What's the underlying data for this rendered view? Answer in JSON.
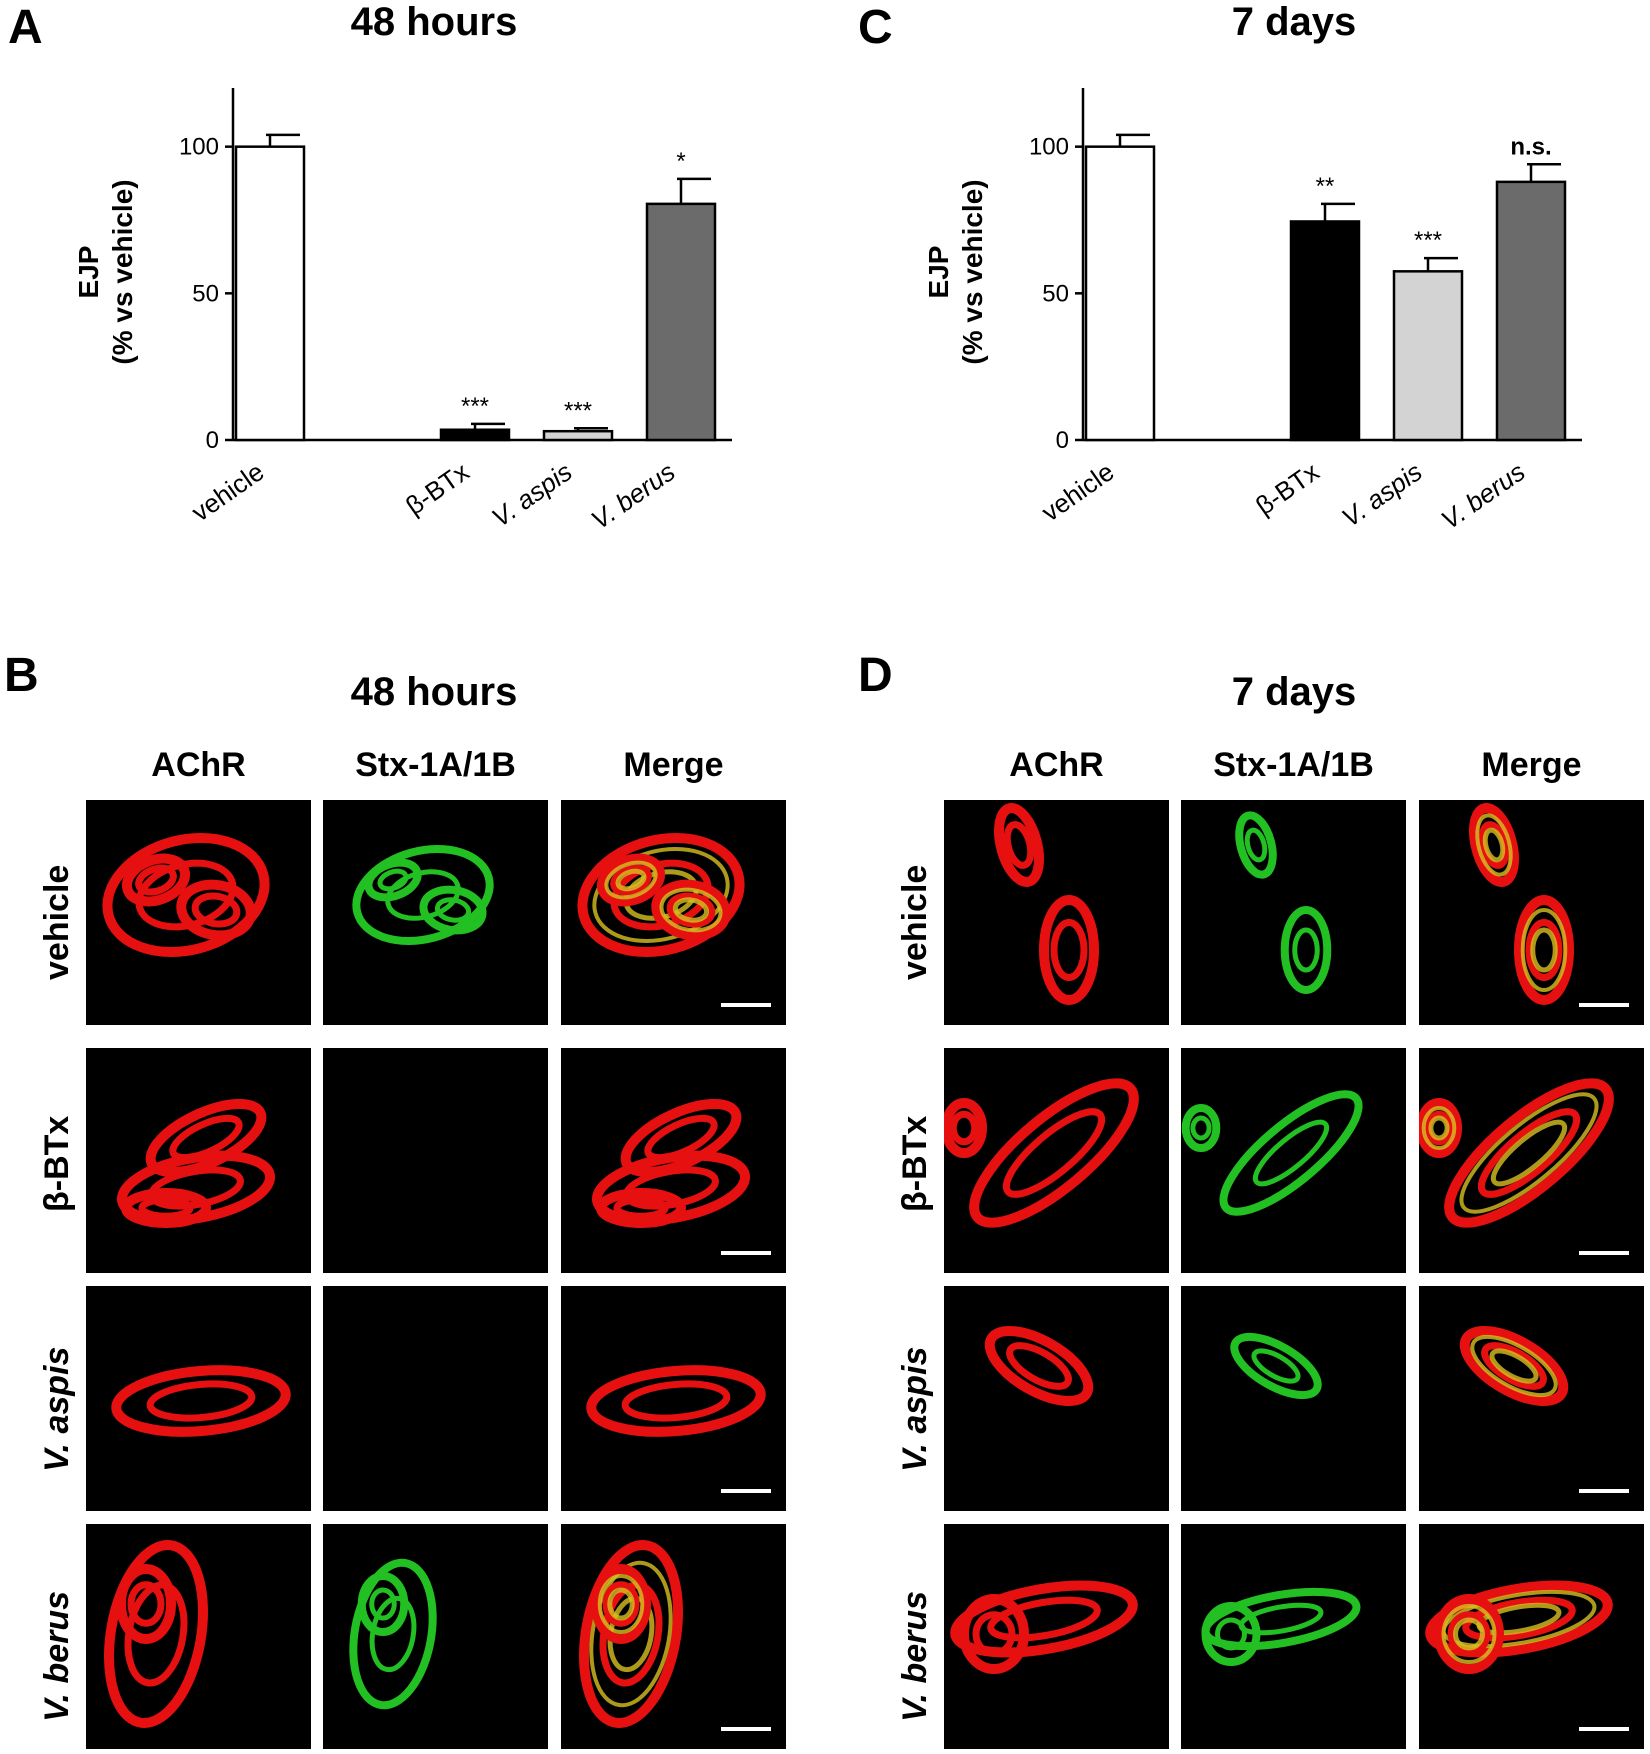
{
  "panels": {
    "A": {
      "letter": "A",
      "title": "48 hours"
    },
    "B": {
      "letter": "B",
      "title": "48 hours"
    },
    "C": {
      "letter": "C",
      "title": "7 days"
    },
    "D": {
      "letter": "D",
      "title": "7 days"
    }
  },
  "image_grid": {
    "columns": [
      "AChR",
      "Stx-1A/1B",
      "Merge"
    ],
    "rows": [
      "vehicle",
      "β-BTx",
      "V. aspis",
      "V. berus"
    ]
  },
  "colors": {
    "vehicle": "#ffffff",
    "b_btx": "#000000",
    "v_aspis": "#d3d3d3",
    "v_berus": "#6b6b6b",
    "achr": "#e61010",
    "stx": "#22c022",
    "merge_overlap": "#d8c020"
  },
  "chart_data": [
    {
      "panel": "A",
      "type": "bar",
      "title": "48 hours",
      "ylabel_line1": "EJP",
      "ylabel_line2": "(% vs vehicle)",
      "ylim": [
        0,
        120
      ],
      "yticks": [
        0,
        50,
        100
      ],
      "categories": [
        "vehicle",
        "β-BTx",
        "V. aspis",
        "V. berus"
      ],
      "values": [
        100,
        3.5,
        3,
        80.5
      ],
      "errors": [
        4,
        2,
        1,
        8.5
      ],
      "significance": [
        "",
        "***",
        "***",
        "*"
      ],
      "fill_colors": [
        "#ffffff",
        "#000000",
        "#d3d3d3",
        "#6b6b6b"
      ]
    },
    {
      "panel": "C",
      "type": "bar",
      "title": "7 days",
      "ylabel_line1": "EJP",
      "ylabel_line2": "(% vs vehicle)",
      "ylim": [
        0,
        120
      ],
      "yticks": [
        0,
        50,
        100
      ],
      "categories": [
        "vehicle",
        "β-BTx",
        "V. aspis",
        "V. berus"
      ],
      "values": [
        100,
        74.5,
        57.5,
        88
      ],
      "errors": [
        4,
        6,
        4.5,
        6
      ],
      "significance": [
        "",
        "**",
        "***",
        "n.s."
      ],
      "fill_colors": [
        "#ffffff",
        "#000000",
        "#d3d3d3",
        "#6b6b6b"
      ]
    }
  ]
}
